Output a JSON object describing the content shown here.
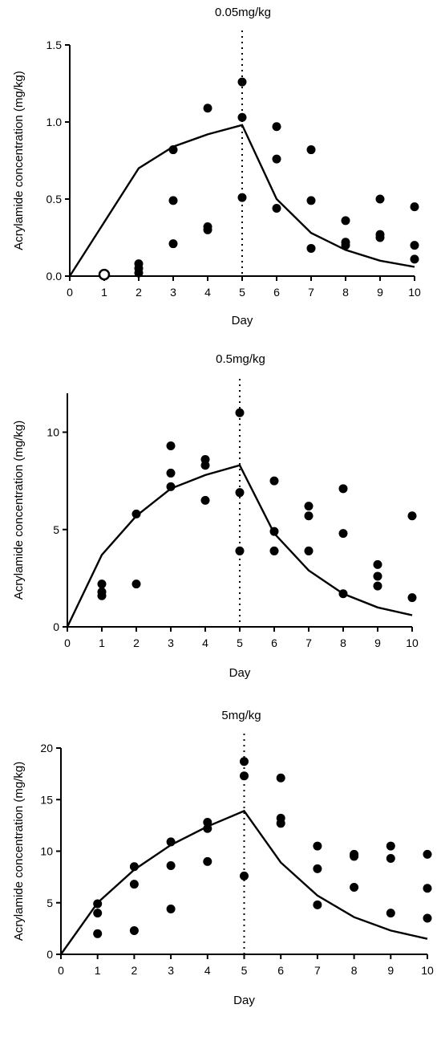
{
  "chart_data": [
    {
      "type": "scatter",
      "title": "0.05mg/kg",
      "xlabel": "Day",
      "ylabel": "Acrylamide concentration (mg/kg)",
      "xlim": [
        0,
        10
      ],
      "ylim": [
        0,
        1.5
      ],
      "xticks": [
        "0",
        "1",
        "2",
        "3",
        "4",
        "5",
        "6",
        "7",
        "8",
        "9",
        "10"
      ],
      "yticks": [
        "0.0",
        "0.5",
        "1.0",
        "1.5"
      ],
      "dotted_line_x": 5,
      "points": [
        {
          "x": 1,
          "y": 0.01,
          "open": true
        },
        {
          "x": 2,
          "y": 0.08
        },
        {
          "x": 2,
          "y": 0.05
        },
        {
          "x": 2,
          "y": 0.02
        },
        {
          "x": 3,
          "y": 0.82
        },
        {
          "x": 3,
          "y": 0.49
        },
        {
          "x": 3,
          "y": 0.21
        },
        {
          "x": 4,
          "y": 1.09
        },
        {
          "x": 4,
          "y": 0.32
        },
        {
          "x": 4,
          "y": 0.3
        },
        {
          "x": 5,
          "y": 1.26
        },
        {
          "x": 5,
          "y": 1.03
        },
        {
          "x": 5,
          "y": 0.51
        },
        {
          "x": 6,
          "y": 0.97
        },
        {
          "x": 6,
          "y": 0.76
        },
        {
          "x": 6,
          "y": 0.44
        },
        {
          "x": 7,
          "y": 0.82
        },
        {
          "x": 7,
          "y": 0.49
        },
        {
          "x": 7,
          "y": 0.18
        },
        {
          "x": 8,
          "y": 0.36
        },
        {
          "x": 8,
          "y": 0.22
        },
        {
          "x": 8,
          "y": 0.2
        },
        {
          "x": 9,
          "y": 0.5
        },
        {
          "x": 9,
          "y": 0.27
        },
        {
          "x": 9,
          "y": 0.25
        },
        {
          "x": 10,
          "y": 0.45
        },
        {
          "x": 10,
          "y": 0.2
        },
        {
          "x": 10,
          "y": 0.11
        }
      ],
      "fit": {
        "x": [
          0,
          2,
          3,
          4,
          5,
          6,
          7,
          8,
          9,
          10
        ],
        "y": [
          0,
          0.7,
          0.84,
          0.92,
          0.98,
          0.5,
          0.28,
          0.17,
          0.1,
          0.06
        ]
      }
    },
    {
      "type": "scatter",
      "title": "0.5mg/kg",
      "xlabel": "Day",
      "ylabel": "Acrylamide concentration (mg/kg)",
      "xlim": [
        0,
        10
      ],
      "ylim": [
        0,
        12
      ],
      "xticks": [
        "0",
        "1",
        "2",
        "3",
        "4",
        "5",
        "6",
        "7",
        "8",
        "9",
        "10"
      ],
      "yticks": [
        "0",
        "5",
        "10"
      ],
      "dotted_line_x": 5,
      "points": [
        {
          "x": 1,
          "y": 2.2
        },
        {
          "x": 1,
          "y": 1.8
        },
        {
          "x": 1,
          "y": 1.6
        },
        {
          "x": 2,
          "y": 5.8
        },
        {
          "x": 2,
          "y": 2.2
        },
        {
          "x": 3,
          "y": 9.3
        },
        {
          "x": 3,
          "y": 7.9
        },
        {
          "x": 3,
          "y": 7.2
        },
        {
          "x": 4,
          "y": 8.6
        },
        {
          "x": 4,
          "y": 8.3
        },
        {
          "x": 4,
          "y": 6.5
        },
        {
          "x": 5,
          "y": 11.0
        },
        {
          "x": 5,
          "y": 6.9
        },
        {
          "x": 5,
          "y": 3.9
        },
        {
          "x": 6,
          "y": 7.5
        },
        {
          "x": 6,
          "y": 4.9
        },
        {
          "x": 6,
          "y": 3.9
        },
        {
          "x": 7,
          "y": 6.2
        },
        {
          "x": 7,
          "y": 5.7
        },
        {
          "x": 7,
          "y": 3.9
        },
        {
          "x": 8,
          "y": 7.1
        },
        {
          "x": 8,
          "y": 4.8
        },
        {
          "x": 8,
          "y": 1.7
        },
        {
          "x": 9,
          "y": 3.2
        },
        {
          "x": 9,
          "y": 2.6
        },
        {
          "x": 9,
          "y": 2.1
        },
        {
          "x": 10,
          "y": 5.7
        },
        {
          "x": 10,
          "y": 1.5
        }
      ],
      "fit": {
        "x": [
          0,
          1,
          2,
          3,
          4,
          5,
          6,
          7,
          8,
          9,
          10
        ],
        "y": [
          0,
          3.7,
          5.7,
          7.1,
          7.8,
          8.3,
          4.8,
          2.9,
          1.7,
          1.0,
          0.6
        ]
      }
    },
    {
      "type": "scatter",
      "title": "5mg/kg",
      "xlabel": "Day",
      "ylabel": "Acrylamide concentration (mg/kg)",
      "xlim": [
        0,
        10
      ],
      "ylim": [
        0,
        20
      ],
      "xticks": [
        "0",
        "1",
        "2",
        "3",
        "4",
        "5",
        "6",
        "7",
        "8",
        "9",
        "10"
      ],
      "yticks": [
        "0",
        "5",
        "10",
        "15",
        "20"
      ],
      "dotted_line_x": 5,
      "points": [
        {
          "x": 1,
          "y": 4.9
        },
        {
          "x": 1,
          "y": 4.0
        },
        {
          "x": 1,
          "y": 2.0
        },
        {
          "x": 2,
          "y": 8.5
        },
        {
          "x": 2,
          "y": 6.8
        },
        {
          "x": 2,
          "y": 2.3
        },
        {
          "x": 3,
          "y": 10.9
        },
        {
          "x": 3,
          "y": 8.6
        },
        {
          "x": 3,
          "y": 4.4
        },
        {
          "x": 4,
          "y": 12.8
        },
        {
          "x": 4,
          "y": 12.2
        },
        {
          "x": 4,
          "y": 9.0
        },
        {
          "x": 5,
          "y": 18.7
        },
        {
          "x": 5,
          "y": 17.3
        },
        {
          "x": 5,
          "y": 7.6
        },
        {
          "x": 6,
          "y": 17.1
        },
        {
          "x": 6,
          "y": 13.2
        },
        {
          "x": 6,
          "y": 12.7
        },
        {
          "x": 7,
          "y": 10.5
        },
        {
          "x": 7,
          "y": 8.3
        },
        {
          "x": 7,
          "y": 4.8
        },
        {
          "x": 8,
          "y": 9.7
        },
        {
          "x": 8,
          "y": 9.5
        },
        {
          "x": 8,
          "y": 6.5
        },
        {
          "x": 9,
          "y": 10.5
        },
        {
          "x": 9,
          "y": 9.3
        },
        {
          "x": 9,
          "y": 4.0
        },
        {
          "x": 10,
          "y": 9.7
        },
        {
          "x": 10,
          "y": 6.4
        },
        {
          "x": 10,
          "y": 3.5
        }
      ],
      "fit": {
        "x": [
          0,
          1,
          2,
          3,
          4,
          5,
          6,
          7,
          8,
          9,
          10
        ],
        "y": [
          0,
          5.0,
          8.2,
          10.6,
          12.4,
          13.9,
          8.9,
          5.7,
          3.6,
          2.3,
          1.5
        ]
      }
    }
  ]
}
